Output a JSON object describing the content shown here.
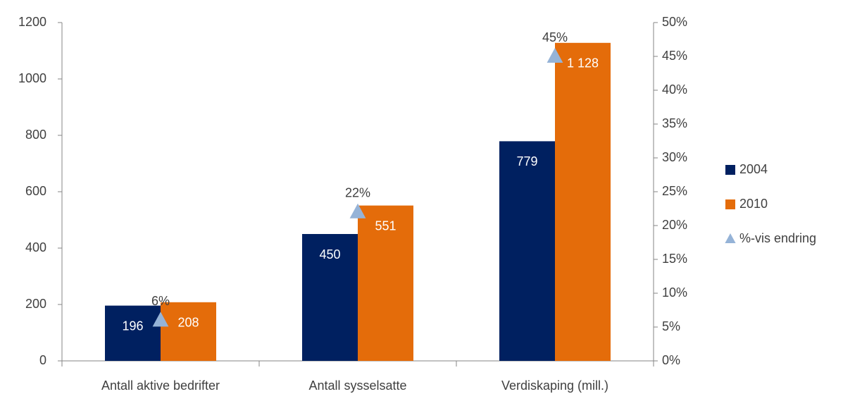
{
  "chart_data": {
    "type": "bar",
    "categories": [
      "Antall aktive bedrifter",
      "Antall sysselsatte",
      "Verdiskaping (mill.)"
    ],
    "series": [
      {
        "name": "2004",
        "color": "#002060",
        "values": [
          196,
          450,
          779
        ]
      },
      {
        "name": "2010",
        "color": "#e46c0a",
        "values": [
          208,
          551,
          1128
        ],
        "value_labels": [
          "208",
          "551",
          "1 128"
        ]
      },
      {
        "name": "%-vis endring",
        "type": "scatter",
        "marker": "triangle",
        "axis": "y2",
        "color": "#95b3d7",
        "values": [
          6,
          22,
          45
        ],
        "value_labels": [
          "6%",
          "22%",
          "45%"
        ]
      }
    ],
    "ylim": [
      0,
      1200
    ],
    "yticks": [
      0,
      200,
      400,
      600,
      800,
      1000,
      1200
    ],
    "y2lim": [
      0,
      50
    ],
    "y2ticks": [
      {
        "value": 0,
        "label": "0%"
      },
      {
        "value": 5,
        "label": "5%"
      },
      {
        "value": 10,
        "label": "10%"
      },
      {
        "value": 15,
        "label": "15%"
      },
      {
        "value": 20,
        "label": "20%"
      },
      {
        "value": 25,
        "label": "25%"
      },
      {
        "value": 30,
        "label": "30%"
      },
      {
        "value": 35,
        "label": "35%"
      },
      {
        "value": 40,
        "label": "40%"
      },
      {
        "value": 45,
        "label": "45%"
      },
      {
        "value": 50,
        "label": "50%"
      }
    ],
    "grid": false,
    "legend": "right"
  }
}
